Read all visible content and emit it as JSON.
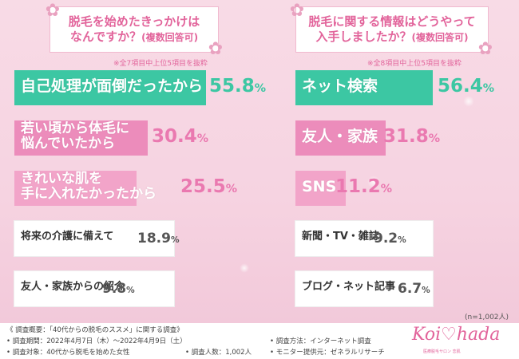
{
  "left_panel": {
    "question": "脱毛を始めたきっかけは\nなんですか？",
    "question_suffix": "(複数回答可)",
    "note": "※全7項目中上位5項目を抜粋"
  },
  "right_panel": {
    "question": "脱毛に関する情報はどうやって\n入手しましたか？",
    "question_suffix": "(複数回答可)",
    "note": "※全8項目中上位5項目を抜粋"
  },
  "chart_data": [
    {
      "type": "bar",
      "title": "脱毛を始めたきっかけはなんですか？(複数回答可)",
      "categories": [
        "自己処理が面倒だったから",
        "若い頃から体毛に\n悩んでいたから",
        "きれいな肌を\n手に入れたかったから",
        "将来の介護に備えて",
        "友人・家族からの紹介"
      ],
      "values": [
        55.8,
        30.4,
        25.5,
        18.9,
        9.8
      ],
      "value_labels": [
        {
          "num": "55.8",
          "unit": "%"
        },
        {
          "num": "30.4",
          "unit": "%"
        },
        {
          "num": "25.5",
          "unit": "%"
        },
        {
          "num": "18.9",
          "unit": "%"
        },
        {
          "num": "9.8",
          "unit": "%"
        }
      ],
      "colors": [
        "#3cc7a3",
        "#ec8cbb",
        "#f2a4c9",
        "#ffffff",
        "#ffffff"
      ]
    },
    {
      "type": "bar",
      "title": "脱毛に関する情報はどうやって入手しましたか？(複数回答可)",
      "categories": [
        "ネット検索",
        "友人・家族",
        "SNS",
        "新聞・TV・雑誌",
        "ブログ・ネット記事"
      ],
      "values": [
        56.4,
        31.8,
        11.2,
        9.2,
        6.7
      ],
      "value_labels": [
        {
          "num": "56.4",
          "unit": "%"
        },
        {
          "num": "31.8",
          "unit": "%"
        },
        {
          "num": "11.2",
          "unit": "%"
        },
        {
          "num": "9.2",
          "unit": "%"
        },
        {
          "num": "6.7",
          "unit": "%"
        }
      ],
      "colors": [
        "#3cc7a3",
        "#ec8cbb",
        "#f2a4c9",
        "#ffffff",
        "#ffffff"
      ]
    }
  ],
  "sample_note": "(n=1,002人)",
  "footer": {
    "line1": "《 調査概要：「40代からの脱毛のススメ」に関する調査》",
    "period": "• 調査期間：2022年4月7日（木）～2022年4月9日（土）",
    "target": "• 調査対象：40代から脱毛を始めた女性",
    "count": "• 調査人数：1,002人",
    "method": "• 調査方法：インターネット調査",
    "provider": "• モニター提供元：ゼネラルリサーチ"
  },
  "logo": {
    "text": "Koi♡hada",
    "sub": "医療脱毛サロン 恋肌"
  }
}
